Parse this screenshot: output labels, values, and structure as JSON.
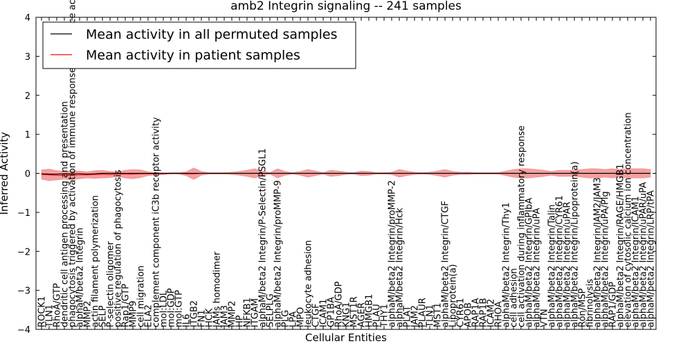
{
  "chart_data": {
    "type": "line",
    "title": "amb2 Integrin signaling -- 241 samples",
    "xlabel": "Cellular Entities",
    "ylabel": "Inferred Activity",
    "ylim": [
      -4,
      4
    ],
    "yticks": [
      "−4",
      "−3",
      "−2",
      "−1",
      "0",
      "1",
      "2",
      "3",
      "4"
    ],
    "grid": false,
    "legend_position": "upper-left",
    "colors": {
      "permuted": "#000000",
      "patient": "#ff0000",
      "band": "#f08080"
    },
    "categories": [
      "ROCK1",
      "TLN1",
      "RhoA/GTP",
      "dendritic cell antigen processing and presentation",
      "phagocytosis triggered by activation of immune response cell surface activating receptor",
      "alphaM/beta2 Integrin",
      "MMP2",
      "actin filament polymerization",
      "SELP",
      "P-selectin oligomer",
      "positive regulation of phagocytosis",
      "Rap1/GTP",
      "MMP9",
      "cell migration",
      "ELA2",
      "complement component iC3b receptor activity",
      "mol:LDL",
      "mol:GDP",
      "mol:GTP",
      "IL6",
      "ITGB2",
      "FN1",
      "HCK",
      "JAMs homodimer",
      "JAM3",
      "MMP2",
      "HP",
      "NFKB1",
      "ITGAM",
      "alphaM/beta2 Integrin/P-Selectin/PSGL1",
      "SELPLG",
      "alphaM/beta2 Integrin/proMMP-9",
      "PLG",
      "LPA",
      "MPO",
      "leukocyte adhesion",
      "CTGF",
      "ICAM1",
      "GP1BA",
      "RhoA/GDP",
      "KNG1",
      "MST1R",
      "AGER",
      "HMGB1",
      "PLAU",
      "THY1",
      "alphaM/beta2 Integrin/proMMP-2",
      "alphaM/beta2 Integrin/Hck",
      "PLAT",
      "JAM2",
      "PLAUR",
      "TLN1",
      "MST1",
      "alphaM/beta2 Integrin/CTGF",
      "Lipoprotein(a)",
      "CYR61",
      "APOB",
      "RAP1A",
      "RAP1B",
      "ICAM2",
      "RHOA",
      "alphaM/beta2 Integrin/Thy1",
      "cell adhesion",
      "cell activation during inflammatory response",
      "alphaM/beta2 Integrin/GPIbA",
      "alphaM/beta2 Integrin/uPA",
      "VTN",
      "alphaM/beta2 Integrin/Talin",
      "alphaM/beta2 Integrin/CYR61",
      "alphaM/beta2 Integrin/uPAR",
      "alphaM/beta2 Integrin/Lipoprotein(a)",
      "Ron/MSP",
      "fibrinolysis",
      "alphaM/beta2 Integrin/JAM2/JAM3",
      "alphaM/beta2 Integrin/uPA/Plg",
      "RAP1/GDP",
      "alphaM/beta2 Integrin/RAGE/HMGB1",
      "elevation of cytosolic calcium ion concentration",
      "alphaM/beta2 Integrin/ICAM1",
      "alphaM/beta2 Integrin/uPAR/uPA",
      "alphaM/beta2 Integrin/LRP/tPA"
    ],
    "series": [
      {
        "name": "Mean activity in all permuted samples",
        "values": [
          -0.01,
          -0.02,
          -0.02,
          -0.01,
          -0.01,
          -0.01,
          -0.02,
          -0.01,
          0.0,
          0.0,
          0.0,
          0.0,
          0.0,
          0.0,
          0.0,
          0.0,
          0.0,
          0.0,
          0.0,
          0.0,
          0.0,
          0.0,
          0.0,
          0.0,
          0.0,
          0.0,
          0.0,
          0.0,
          0.0,
          0.0,
          0.0,
          0.0,
          0.0,
          0.0,
          0.0,
          0.0,
          0.0,
          0.0,
          0.0,
          0.0,
          0.0,
          0.0,
          0.0,
          0.0,
          0.0,
          0.0,
          0.0,
          0.0,
          0.0,
          0.0,
          0.0,
          0.0,
          0.0,
          0.0,
          0.0,
          0.0,
          0.0,
          0.0,
          0.0,
          0.0,
          0.0,
          0.0,
          0.0,
          0.0,
          0.0,
          0.0,
          0.0,
          0.0,
          0.0,
          0.0,
          0.0,
          0.0,
          0.0,
          0.0,
          0.0,
          0.0,
          0.0,
          0.0,
          0.0,
          0.0,
          0.0
        ]
      },
      {
        "name": "Mean activity in patient samples",
        "values": [
          -0.03,
          -0.04,
          -0.05,
          -0.05,
          -0.05,
          -0.04,
          -0.04,
          -0.03,
          -0.02,
          -0.03,
          -0.02,
          -0.02,
          -0.02,
          -0.01,
          -0.01,
          -0.01,
          -0.01,
          0.0,
          0.0,
          -0.01,
          -0.01,
          0.0,
          0.0,
          0.0,
          0.0,
          0.0,
          0.0,
          0.0,
          0.0,
          0.0,
          0.0,
          0.0,
          0.0,
          0.0,
          0.0,
          0.0,
          0.0,
          0.0,
          0.0,
          0.0,
          0.0,
          0.0,
          0.0,
          0.0,
          0.0,
          0.0,
          0.0,
          0.0,
          0.0,
          0.0,
          0.0,
          0.0,
          0.0,
          0.0,
          0.0,
          0.0,
          0.0,
          0.0,
          0.0,
          0.0,
          0.0,
          0.0,
          0.0,
          0.0,
          0.0,
          0.0,
          0.0,
          0.0,
          0.0,
          0.0,
          0.0,
          0.0,
          0.0,
          0.0,
          0.0,
          0.0,
          0.0,
          0.0,
          0.0,
          0.0,
          0.0
        ]
      }
    ],
    "band_halfwidth": [
      0.12,
      0.15,
      0.12,
      0.1,
      0.12,
      0.1,
      0.08,
      0.1,
      0.1,
      0.08,
      0.06,
      0.1,
      0.12,
      0.1,
      0.05,
      0.03,
      0.02,
      0.02,
      0.02,
      0.05,
      0.15,
      0.05,
      0.02,
      0.02,
      0.02,
      0.03,
      0.05,
      0.08,
      0.12,
      0.06,
      0.02,
      0.12,
      0.05,
      0.02,
      0.05,
      0.1,
      0.06,
      0.02,
      0.08,
      0.06,
      0.03,
      0.02,
      0.06,
      0.05,
      0.02,
      0.02,
      0.03,
      0.1,
      0.06,
      0.03,
      0.02,
      0.03,
      0.06,
      0.1,
      0.05,
      0.03,
      0.03,
      0.02,
      0.02,
      0.02,
      0.02,
      0.06,
      0.1,
      0.12,
      0.12,
      0.1,
      0.08,
      0.05,
      0.08,
      0.08,
      0.08,
      0.1,
      0.12,
      0.12,
      0.1,
      0.12,
      0.1,
      0.12,
      0.12,
      0.12,
      0.1
    ]
  }
}
